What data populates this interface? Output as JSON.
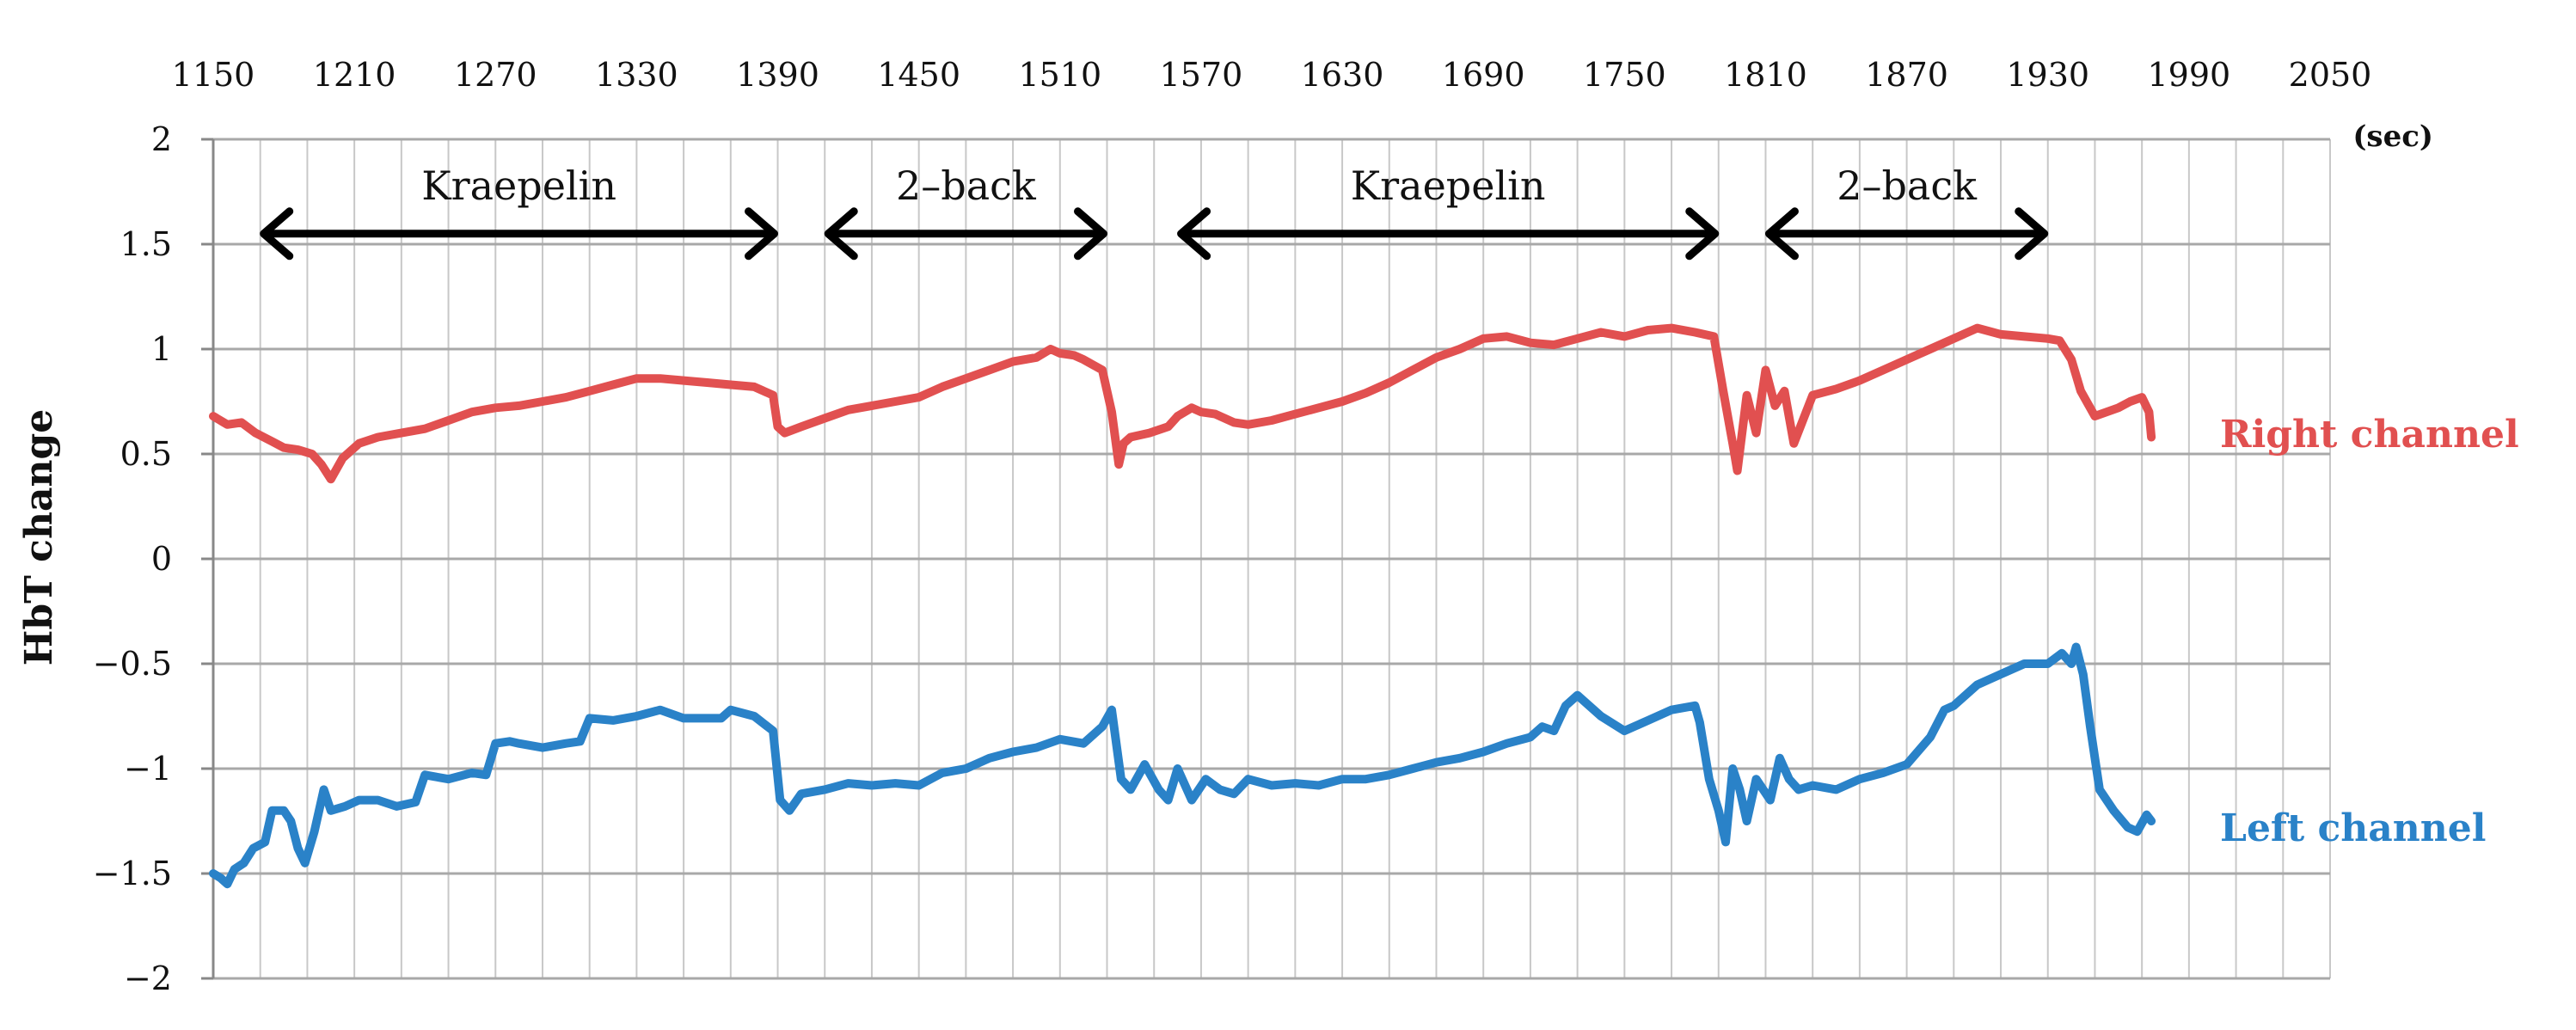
{
  "chart_data": {
    "type": "line",
    "title": "",
    "xlabel": "",
    "ylabel": "HbT change",
    "x_unit": "(sec)",
    "xlim": [
      1150,
      2050
    ],
    "ylim": [
      -2,
      2
    ],
    "x_ticks": [
      1150,
      1210,
      1270,
      1330,
      1390,
      1450,
      1510,
      1570,
      1630,
      1690,
      1750,
      1810,
      1870,
      1930,
      1990,
      2050
    ],
    "x_tick_labels": [
      "1150",
      "1210",
      "1270",
      "1330",
      "1390",
      "1450",
      "1510",
      "1570",
      "1630",
      "1690",
      "1750",
      "1810",
      "1870",
      "1930",
      "1990",
      "2050"
    ],
    "y_ticks": [
      -2,
      -1.5,
      -1,
      -0.5,
      0,
      0.5,
      1,
      1.5,
      2
    ],
    "y_tick_labels": [
      "−2",
      "−1.5",
      "−1",
      "−0.5",
      "0",
      "0.5",
      "1",
      "1.5",
      "2"
    ],
    "grid": true,
    "x_minor_step": 20,
    "annotations": [
      {
        "label": "Kraepelin",
        "x_start": 1170,
        "x_end": 1390,
        "y": 1.55
      },
      {
        "label": "2–back",
        "x_start": 1410,
        "x_end": 1530,
        "y": 1.55
      },
      {
        "label": "Kraepelin",
        "x_start": 1560,
        "x_end": 1790,
        "y": 1.55
      },
      {
        "label": "2–back",
        "x_start": 1810,
        "x_end": 1930,
        "y": 1.55
      }
    ],
    "series": [
      {
        "name": "Right channel",
        "color": "#e15050",
        "x": [
          1150,
          1156,
          1162,
          1168,
          1175,
          1180,
          1186,
          1192,
          1196,
          1200,
          1205,
          1212,
          1220,
          1230,
          1240,
          1250,
          1260,
          1270,
          1280,
          1290,
          1300,
          1310,
          1320,
          1330,
          1340,
          1350,
          1360,
          1370,
          1380,
          1388,
          1390,
          1393,
          1400,
          1410,
          1420,
          1430,
          1440,
          1450,
          1460,
          1470,
          1480,
          1490,
          1500,
          1506,
          1510,
          1516,
          1520,
          1528,
          1532,
          1535,
          1537,
          1540,
          1548,
          1556,
          1560,
          1566,
          1570,
          1576,
          1584,
          1590,
          1600,
          1610,
          1620,
          1630,
          1640,
          1650,
          1660,
          1670,
          1680,
          1690,
          1700,
          1710,
          1720,
          1730,
          1740,
          1750,
          1760,
          1770,
          1780,
          1788,
          1792,
          1796,
          1798,
          1802,
          1806,
          1810,
          1814,
          1818,
          1822,
          1830,
          1840,
          1850,
          1860,
          1870,
          1880,
          1890,
          1900,
          1910,
          1920,
          1930,
          1935,
          1940,
          1944,
          1950,
          1955,
          1960,
          1965,
          1970,
          1973,
          1974
        ],
        "values": [
          0.68,
          0.64,
          0.65,
          0.6,
          0.56,
          0.53,
          0.52,
          0.5,
          0.45,
          0.38,
          0.48,
          0.55,
          0.58,
          0.6,
          0.62,
          0.66,
          0.7,
          0.72,
          0.73,
          0.75,
          0.77,
          0.8,
          0.83,
          0.86,
          0.86,
          0.85,
          0.84,
          0.83,
          0.82,
          0.78,
          0.63,
          0.6,
          0.63,
          0.67,
          0.71,
          0.73,
          0.75,
          0.77,
          0.82,
          0.86,
          0.9,
          0.94,
          0.96,
          1.0,
          0.98,
          0.97,
          0.95,
          0.9,
          0.7,
          0.45,
          0.55,
          0.58,
          0.6,
          0.63,
          0.68,
          0.72,
          0.7,
          0.69,
          0.65,
          0.64,
          0.66,
          0.69,
          0.72,
          0.75,
          0.79,
          0.84,
          0.9,
          0.96,
          1.0,
          1.05,
          1.06,
          1.03,
          1.02,
          1.05,
          1.08,
          1.06,
          1.09,
          1.1,
          1.08,
          1.06,
          0.8,
          0.55,
          0.42,
          0.78,
          0.6,
          0.9,
          0.73,
          0.8,
          0.55,
          0.78,
          0.81,
          0.85,
          0.9,
          0.95,
          1.0,
          1.05,
          1.1,
          1.07,
          1.06,
          1.05,
          1.04,
          0.95,
          0.8,
          0.68,
          0.7,
          0.72,
          0.75,
          0.77,
          0.7,
          0.58
        ]
      },
      {
        "name": "Left channel",
        "color": "#2a82c8",
        "x": [
          1150,
          1153,
          1156,
          1159,
          1163,
          1167,
          1172,
          1175,
          1180,
          1183,
          1186,
          1189,
          1193,
          1197,
          1200,
          1206,
          1212,
          1220,
          1228,
          1236,
          1240,
          1250,
          1260,
          1266,
          1270,
          1276,
          1280,
          1290,
          1300,
          1306,
          1310,
          1320,
          1330,
          1340,
          1350,
          1360,
          1366,
          1370,
          1380,
          1388,
          1391,
          1395,
          1400,
          1410,
          1420,
          1430,
          1440,
          1450,
          1460,
          1470,
          1480,
          1490,
          1500,
          1510,
          1520,
          1528,
          1532,
          1536,
          1540,
          1546,
          1552,
          1556,
          1560,
          1566,
          1572,
          1578,
          1584,
          1590,
          1600,
          1610,
          1620,
          1630,
          1640,
          1650,
          1660,
          1670,
          1680,
          1690,
          1700,
          1710,
          1715,
          1720,
          1725,
          1730,
          1740,
          1750,
          1760,
          1770,
          1780,
          1782,
          1786,
          1790,
          1793,
          1796,
          1799,
          1802,
          1806,
          1812,
          1816,
          1820,
          1824,
          1830,
          1840,
          1850,
          1860,
          1870,
          1880,
          1886,
          1890,
          1900,
          1910,
          1920,
          1930,
          1936,
          1940,
          1942,
          1945,
          1948,
          1952,
          1958,
          1964,
          1968,
          1972,
          1974
        ],
        "values": [
          -1.5,
          -1.52,
          -1.55,
          -1.48,
          -1.45,
          -1.38,
          -1.35,
          -1.2,
          -1.2,
          -1.25,
          -1.38,
          -1.45,
          -1.3,
          -1.1,
          -1.2,
          -1.18,
          -1.15,
          -1.15,
          -1.18,
          -1.16,
          -1.03,
          -1.05,
          -1.02,
          -1.03,
          -0.88,
          -0.87,
          -0.88,
          -0.9,
          -0.88,
          -0.87,
          -0.76,
          -0.77,
          -0.75,
          -0.72,
          -0.76,
          -0.76,
          -0.76,
          -0.72,
          -0.75,
          -0.82,
          -1.15,
          -1.2,
          -1.12,
          -1.1,
          -1.07,
          -1.08,
          -1.07,
          -1.08,
          -1.02,
          -1.0,
          -0.95,
          -0.92,
          -0.9,
          -0.86,
          -0.88,
          -0.8,
          -0.72,
          -1.05,
          -1.1,
          -0.98,
          -1.1,
          -1.15,
          -1.0,
          -1.15,
          -1.05,
          -1.1,
          -1.12,
          -1.05,
          -1.08,
          -1.07,
          -1.08,
          -1.05,
          -1.05,
          -1.03,
          -1.0,
          -0.97,
          -0.95,
          -0.92,
          -0.88,
          -0.85,
          -0.8,
          -0.82,
          -0.7,
          -0.65,
          -0.75,
          -0.82,
          -0.77,
          -0.72,
          -0.7,
          -0.78,
          -1.05,
          -1.2,
          -1.35,
          -1.0,
          -1.1,
          -1.25,
          -1.05,
          -1.15,
          -0.95,
          -1.05,
          -1.1,
          -1.08,
          -1.1,
          -1.05,
          -1.02,
          -0.98,
          -0.85,
          -0.72,
          -0.7,
          -0.6,
          -0.55,
          -0.5,
          -0.5,
          -0.45,
          -0.5,
          -0.42,
          -0.55,
          -0.8,
          -1.1,
          -1.2,
          -1.28,
          -1.3,
          -1.22,
          -1.25
        ]
      }
    ]
  }
}
